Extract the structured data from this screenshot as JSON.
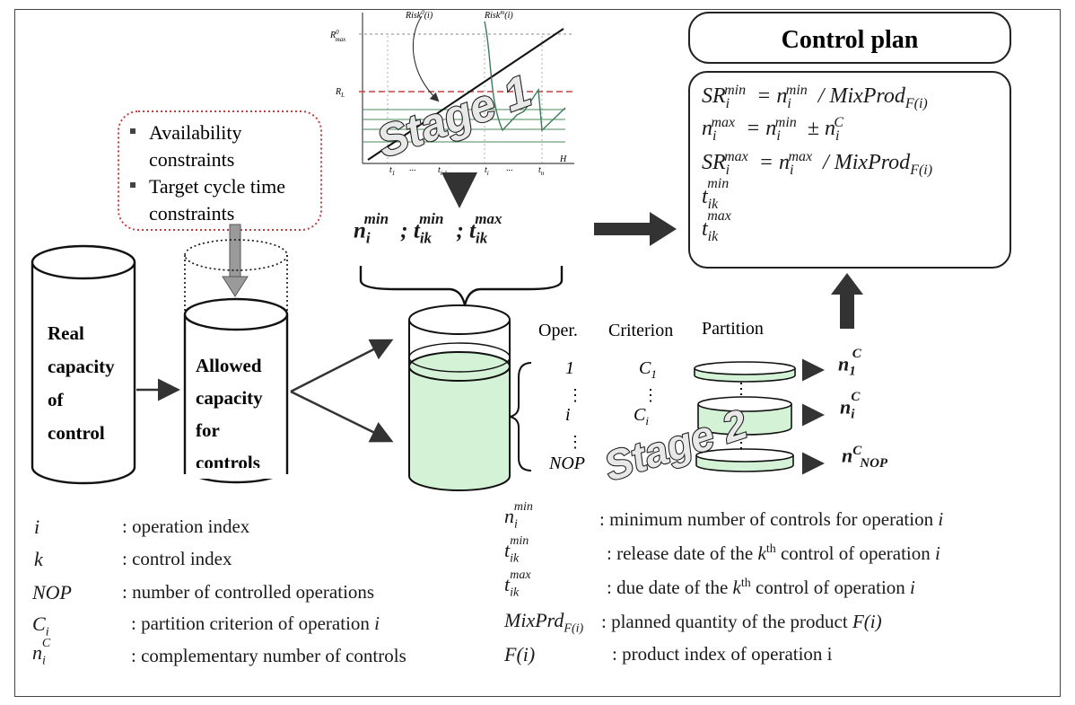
{
  "control_plan": {
    "title": "Control plan"
  },
  "constraints": {
    "items": [
      "Availability constraints",
      "Target cycle time constraints"
    ]
  },
  "cylinders": {
    "real": {
      "lines": [
        "Real",
        "capacity",
        "of",
        "control"
      ]
    },
    "allowed": {
      "lines": [
        "Allowed",
        "capacity",
        "for",
        "controls"
      ]
    }
  },
  "stage_chart": {
    "y_labels": [
      "R0max",
      "RL"
    ],
    "curve_labels": [
      "Risk0(i)",
      "Riskm(i)"
    ],
    "x_labels": [
      "t1",
      "...",
      "ti-1",
      "ti",
      "...",
      "tn",
      "H"
    ]
  },
  "stage_labels": [
    "Stage 1",
    "Stage 2"
  ],
  "partition_table": {
    "headers": [
      "Oper.",
      "Criterion",
      "Partition"
    ],
    "oper_rows": [
      "1",
      "i",
      "NOP"
    ],
    "criterion_rows": [
      "C1",
      "Ci"
    ]
  },
  "legend": {
    "left": [
      {
        "symbol": "i",
        "desc": ": operation index"
      },
      {
        "symbol": "k",
        "desc": ": control index"
      },
      {
        "symbol": "NOP",
        "desc": ": number of controlled operations"
      },
      {
        "symbol": "Ci",
        "desc": ": partition criterion of operation i"
      },
      {
        "symbol": "niC",
        "desc": ": complementary number of controls"
      }
    ],
    "right": [
      {
        "symbol": "nimin",
        "desc": ": minimum number of controls for operation i"
      },
      {
        "symbol": "tikmin",
        "desc": ": release date of the kth control of operation i"
      },
      {
        "symbol": "tikmax",
        "desc": ": due date of the kth control of operation i"
      },
      {
        "symbol": "MixPrdF(i)",
        "desc": ": planned quantity of the product F(i)"
      },
      {
        "symbol": "F(i)",
        "desc": ": product index of operation i"
      }
    ]
  },
  "colors": {
    "liquid": "#d3f2d6",
    "constraint_border": "#c04040",
    "arrow_gray": "#9a9a9a",
    "dark": "#333333"
  }
}
